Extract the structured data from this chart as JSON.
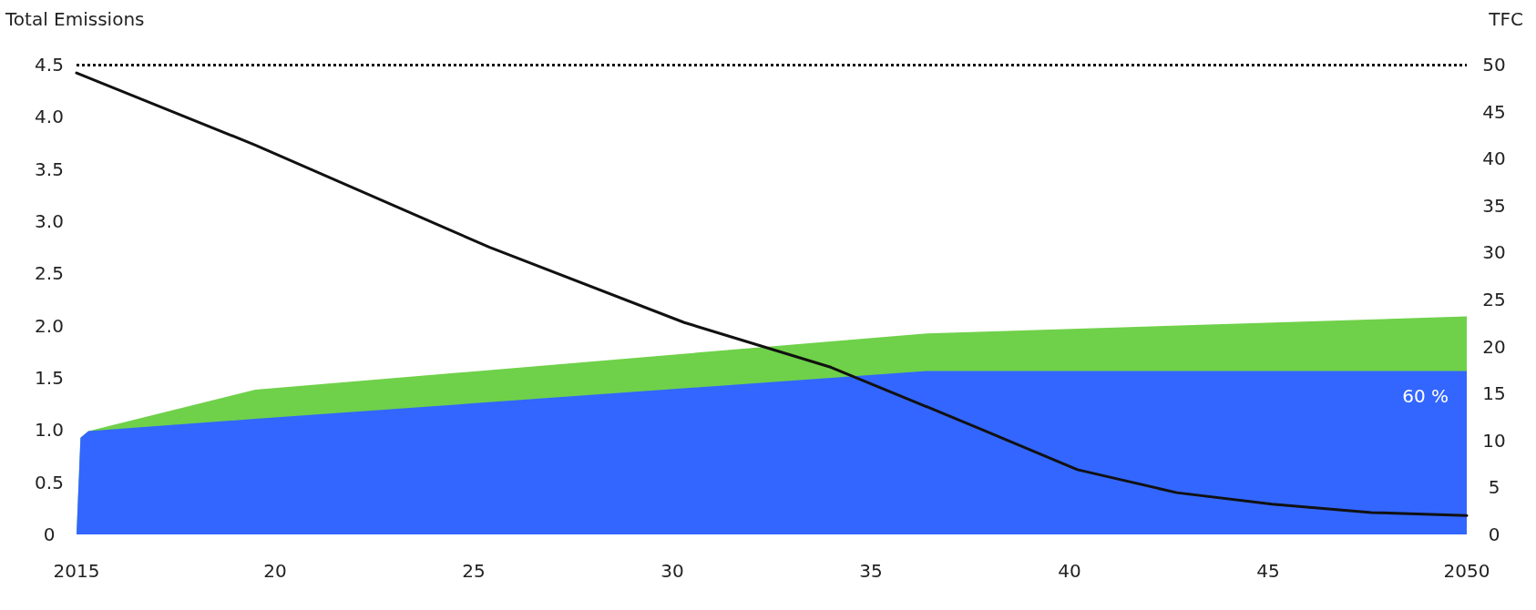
{
  "chart_data": {
    "type": "area",
    "ylabel": "Total Emissions",
    "y2label": "TFC",
    "xlim": [
      2015,
      2050
    ],
    "xticks": [
      2015,
      {
        "value": 2020,
        "label": "20"
      },
      {
        "value": 2025,
        "label": "25"
      },
      {
        "value": 2030,
        "label": "30"
      },
      {
        "value": 2035,
        "label": "35"
      },
      {
        "value": 2040,
        "label": "40"
      },
      {
        "value": 2045,
        "label": "45"
      },
      2050
    ],
    "ylim": [
      0,
      4.5
    ],
    "yticks": [
      0,
      0.5,
      {
        "value": 1,
        "label": "1.0"
      },
      1.5,
      {
        "value": 2,
        "label": "2.0"
      },
      2.5,
      {
        "value": 3,
        "label": "3.0"
      },
      3.5,
      {
        "value": 4,
        "label": "4.0"
      },
      4.5
    ],
    "y2lim": [
      0,
      50
    ],
    "y2ticks": [
      0,
      5,
      10,
      15,
      20,
      25,
      30,
      35,
      40,
      45,
      50
    ],
    "grid": false,
    "legend": false,
    "stacked": true,
    "series": [
      {
        "axis": "y2",
        "color": "#3366ff",
        "x": [
          2015,
          2015.1,
          2015.3,
          2019.5,
          2036.4,
          2050
        ],
        "values": [
          0,
          10.3,
          11.0,
          12.3,
          17.4,
          17.4
        ]
      },
      {
        "axis": "y2",
        "color": "#6fd14a",
        "x": [
          2015,
          2015.1,
          2015.3,
          2019.5,
          2036.4,
          2050
        ],
        "values": [
          0,
          0,
          0,
          3.1,
          4.0,
          5.8
        ]
      },
      {
        "type": "line",
        "axis": "y",
        "color": "#111111",
        "x": [
          2015,
          2019.5,
          2025.4,
          2030.3,
          2034.0,
          2037.7,
          2040.2,
          2042.7,
          2045.1,
          2047.6,
          2050
        ],
        "values": [
          4.42,
          3.73,
          2.75,
          2.03,
          1.6,
          1.02,
          0.62,
          0.4,
          0.29,
          0.21,
          0.18
        ]
      }
    ],
    "ref_lines": [
      {
        "axis": "y",
        "value": 4.5,
        "color": "#111111",
        "line_style": "dotted"
      }
    ],
    "annotations": [
      "60 %"
    ]
  }
}
